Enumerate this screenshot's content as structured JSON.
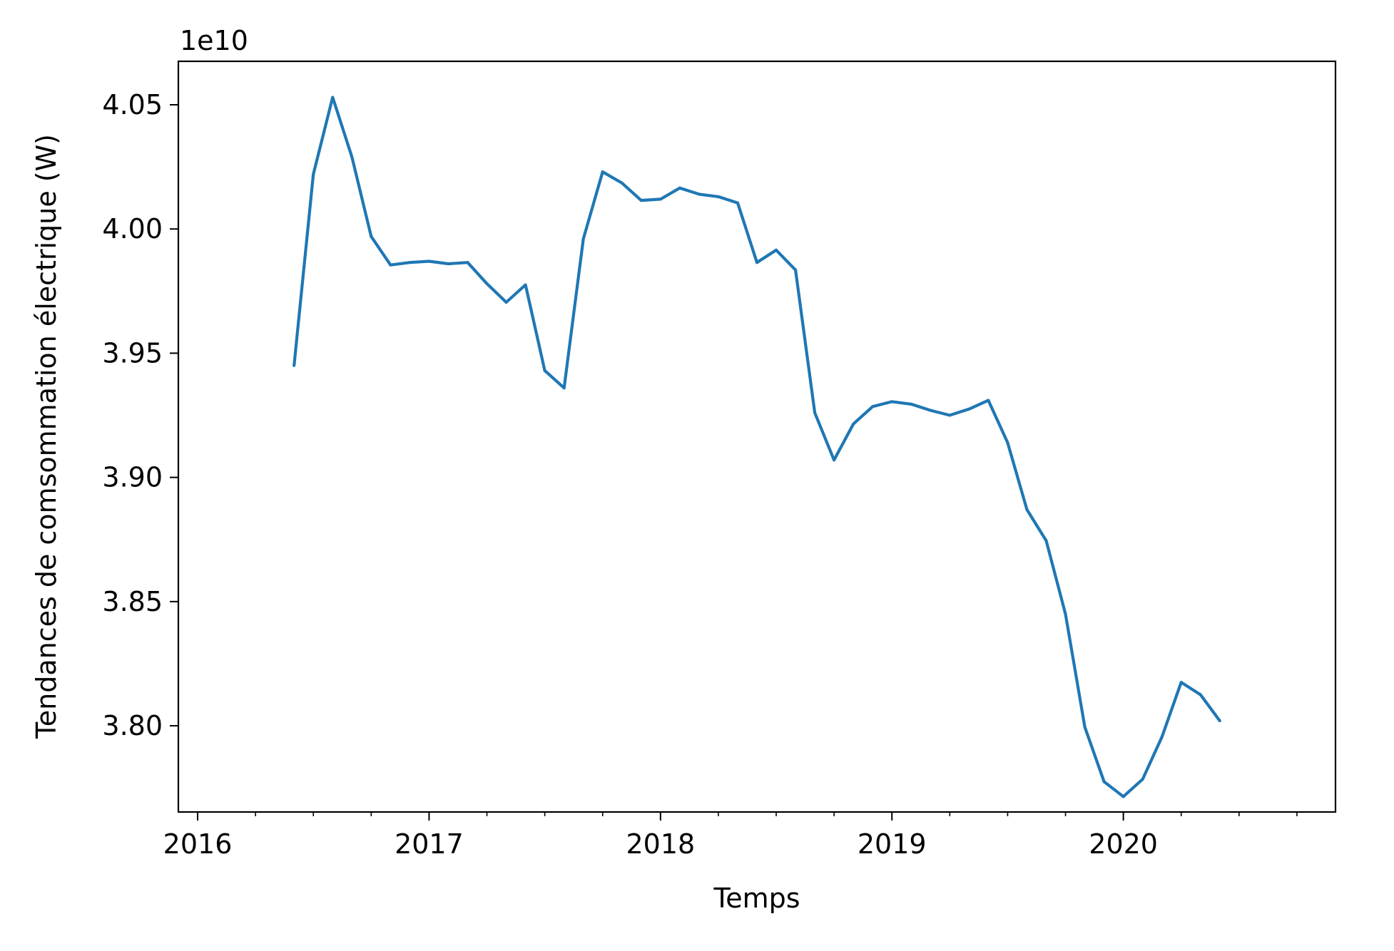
{
  "chart_data": {
    "type": "line",
    "title": "",
    "xlabel": "Temps",
    "ylabel": "Tendances de comsommation électrique (W)",
    "offset_label": "1e10",
    "x_ticks": [
      "2016",
      "2017",
      "2018",
      "2019",
      "2020"
    ],
    "y_ticks": [
      "3.80",
      "3.85",
      "3.90",
      "3.95",
      "4.00",
      "4.05"
    ],
    "xlim": [
      "2015-12-01",
      "2020-12-01"
    ],
    "ylim": [
      3.7653,
      4.0675
    ],
    "grid": false,
    "legend": "none",
    "series": [
      {
        "color": "#1f77b4",
        "x": [
          "2016-06",
          "2016-07",
          "2016-08",
          "2016-09",
          "2016-10",
          "2016-11",
          "2016-12",
          "2017-01",
          "2017-02",
          "2017-03",
          "2017-04",
          "2017-05",
          "2017-06",
          "2017-07",
          "2017-08",
          "2017-09",
          "2017-10",
          "2017-11",
          "2017-12",
          "2018-01",
          "2018-02",
          "2018-03",
          "2018-04",
          "2018-05",
          "2018-06",
          "2018-07",
          "2018-08",
          "2018-09",
          "2018-10",
          "2018-11",
          "2018-12",
          "2019-01",
          "2019-02",
          "2019-03",
          "2019-04",
          "2019-05",
          "2019-06",
          "2019-07",
          "2019-08",
          "2019-09",
          "2019-10",
          "2019-11",
          "2019-12",
          "2020-01",
          "2020-02",
          "2020-03",
          "2020-04",
          "2020-05",
          "2020-06"
        ],
        "values": [
          3.945,
          4.022,
          4.053,
          4.029,
          3.997,
          3.9855,
          3.9865,
          3.987,
          3.986,
          3.9865,
          3.978,
          3.9705,
          3.9775,
          3.943,
          3.936,
          3.996,
          4.023,
          4.0185,
          4.0115,
          4.012,
          4.0165,
          4.014,
          4.013,
          4.0105,
          3.9865,
          3.9915,
          3.9835,
          3.926,
          3.907,
          3.9215,
          3.9285,
          3.9305,
          3.9295,
          3.927,
          3.925,
          3.9275,
          3.931,
          3.914,
          3.887,
          3.8745,
          3.845,
          3.7995,
          3.7775,
          3.7715,
          3.7785,
          3.7955,
          3.8175,
          3.8125,
          3.802
        ]
      }
    ]
  }
}
